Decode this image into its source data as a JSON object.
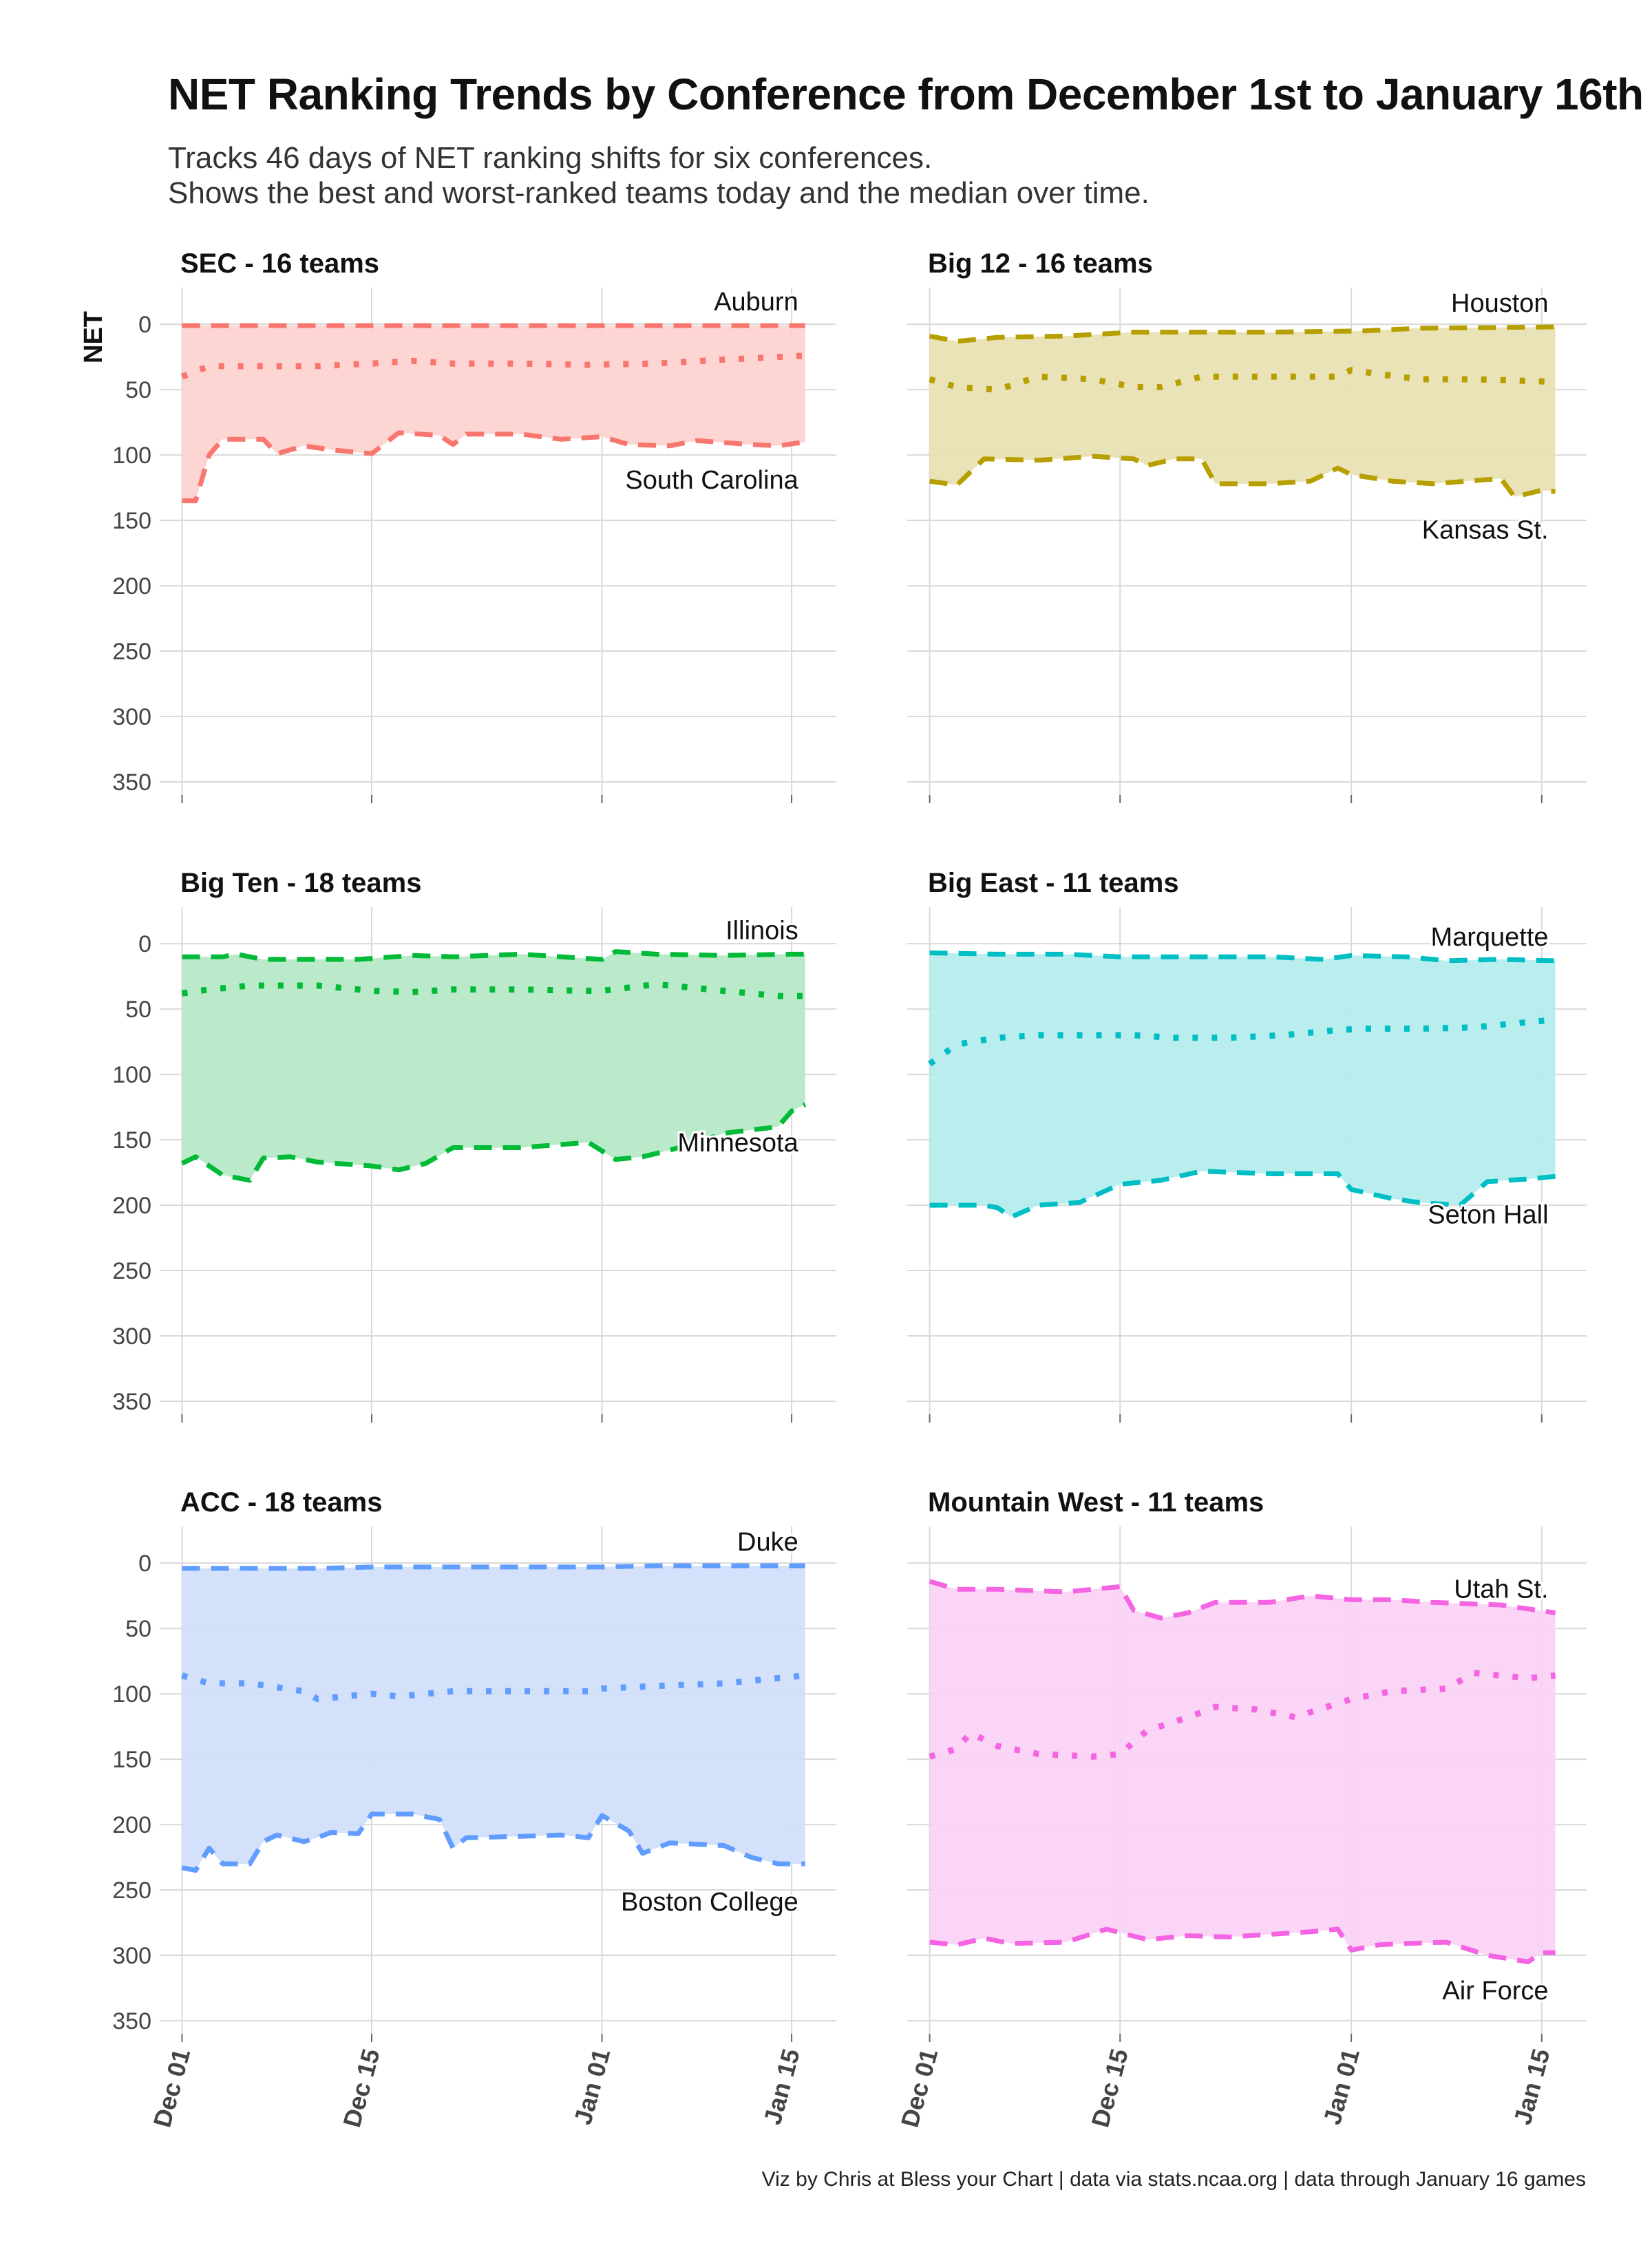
{
  "title": "NET Ranking Trends by Conference from December 1st to January 16th",
  "subtitle_lines": [
    "Tracks 46 days of NET ranking shifts for six conferences.",
    "Shows the best and worst-ranked teams today and the median over time."
  ],
  "caption": "Viz by Chris at Bless your Chart | data via stats.ncaa.org | data through January 16 games",
  "y_axis_label": "NET",
  "chart_data": {
    "type": "area",
    "x_tick_labels": [
      "Dec 01",
      "Dec 15",
      "Jan 01",
      "Jan 15"
    ],
    "x_tick_days": [
      0,
      14,
      31,
      45
    ],
    "y_ticks": [
      0,
      50,
      100,
      150,
      200,
      250,
      300,
      350
    ],
    "ylim": [
      360,
      -28
    ],
    "y_reversed": true,
    "grid": true,
    "panels": [
      {
        "title": "SEC - 16 teams",
        "color": "#F8766D",
        "fill": "#FDD2CE",
        "best_label": "Auburn",
        "worst_label": "South Carolina",
        "best": [
          [
            0,
            1
          ],
          [
            10,
            1
          ],
          [
            20,
            1
          ],
          [
            30,
            1
          ],
          [
            40,
            1
          ],
          [
            46,
            1
          ]
        ],
        "median": [
          [
            0,
            40
          ],
          [
            2,
            32
          ],
          [
            5,
            32
          ],
          [
            10,
            32
          ],
          [
            14,
            30
          ],
          [
            17,
            28
          ],
          [
            20,
            30
          ],
          [
            25,
            30
          ],
          [
            30,
            31
          ],
          [
            35,
            30
          ],
          [
            40,
            27
          ],
          [
            46,
            24
          ]
        ],
        "worst": [
          [
            0,
            135
          ],
          [
            1,
            135
          ],
          [
            2,
            100
          ],
          [
            3,
            88
          ],
          [
            6,
            88
          ],
          [
            7,
            99
          ],
          [
            9,
            93
          ],
          [
            11,
            96
          ],
          [
            14,
            99
          ],
          [
            16,
            83
          ],
          [
            19,
            85
          ],
          [
            20,
            92
          ],
          [
            21,
            84
          ],
          [
            25,
            84
          ],
          [
            28,
            88
          ],
          [
            31,
            86
          ],
          [
            33,
            92
          ],
          [
            36,
            93
          ],
          [
            38,
            89
          ],
          [
            42,
            92
          ],
          [
            44,
            93
          ],
          [
            46,
            90
          ]
        ]
      },
      {
        "title": "Big 12 - 16 teams",
        "color": "#B79F00",
        "fill": "#E8E0B0",
        "best_label": "Houston",
        "worst_label": "Kansas St.",
        "best": [
          [
            0,
            9
          ],
          [
            2,
            13
          ],
          [
            5,
            10
          ],
          [
            10,
            9
          ],
          [
            15,
            6
          ],
          [
            25,
            6
          ],
          [
            32,
            5
          ],
          [
            36,
            3
          ],
          [
            46,
            2
          ]
        ],
        "median": [
          [
            0,
            42
          ],
          [
            2,
            48
          ],
          [
            5,
            50
          ],
          [
            8,
            40
          ],
          [
            12,
            42
          ],
          [
            15,
            48
          ],
          [
            17,
            48
          ],
          [
            20,
            40
          ],
          [
            25,
            40
          ],
          [
            30,
            40
          ],
          [
            31,
            35
          ],
          [
            33,
            38
          ],
          [
            36,
            42
          ],
          [
            40,
            42
          ],
          [
            46,
            44
          ]
        ],
        "worst": [
          [
            0,
            120
          ],
          [
            2,
            123
          ],
          [
            4,
            103
          ],
          [
            8,
            104
          ],
          [
            12,
            101
          ],
          [
            15,
            103
          ],
          [
            16,
            108
          ],
          [
            18,
            103
          ],
          [
            20,
            103
          ],
          [
            21,
            122
          ],
          [
            25,
            122
          ],
          [
            28,
            120
          ],
          [
            30,
            110
          ],
          [
            31,
            115
          ],
          [
            34,
            120
          ],
          [
            37,
            122
          ],
          [
            42,
            118
          ],
          [
            43,
            132
          ],
          [
            45,
            127
          ],
          [
            46,
            128
          ]
        ]
      },
      {
        "title": "Big Ten - 18 teams",
        "color": "#00BA38",
        "fill": "#B3E8C3",
        "best_label": "Illinois",
        "worst_label": "Minnesota",
        "best": [
          [
            0,
            10
          ],
          [
            3,
            10
          ],
          [
            4,
            8
          ],
          [
            6,
            12
          ],
          [
            10,
            12
          ],
          [
            13,
            12
          ],
          [
            17,
            9
          ],
          [
            20,
            10
          ],
          [
            25,
            8
          ],
          [
            31,
            12
          ],
          [
            32,
            6
          ],
          [
            35,
            8
          ],
          [
            40,
            9
          ],
          [
            45,
            8
          ],
          [
            46,
            8
          ]
        ],
        "median": [
          [
            0,
            38
          ],
          [
            2,
            35
          ],
          [
            5,
            32
          ],
          [
            10,
            32
          ],
          [
            14,
            36
          ],
          [
            17,
            37
          ],
          [
            20,
            35
          ],
          [
            25,
            35
          ],
          [
            30,
            36
          ],
          [
            31,
            36
          ],
          [
            35,
            31
          ],
          [
            40,
            36
          ],
          [
            44,
            40
          ],
          [
            46,
            40
          ]
        ],
        "worst": [
          [
            0,
            168
          ],
          [
            1,
            163
          ],
          [
            3,
            177
          ],
          [
            5,
            181
          ],
          [
            6,
            164
          ],
          [
            8,
            163
          ],
          [
            10,
            167
          ],
          [
            14,
            170
          ],
          [
            16,
            173
          ],
          [
            18,
            168
          ],
          [
            20,
            156
          ],
          [
            25,
            156
          ],
          [
            30,
            152
          ],
          [
            32,
            165
          ],
          [
            34,
            163
          ],
          [
            36,
            158
          ],
          [
            38,
            152
          ],
          [
            40,
            145
          ],
          [
            44,
            140
          ],
          [
            45,
            128
          ],
          [
            46,
            123
          ]
        ]
      },
      {
        "title": "Big East - 11 teams",
        "color": "#00BFC4",
        "fill": "#B3ECEC",
        "best_label": "Marquette",
        "worst_label": "Seton Hall",
        "best": [
          [
            0,
            7
          ],
          [
            5,
            8
          ],
          [
            10,
            8
          ],
          [
            14,
            10
          ],
          [
            20,
            10
          ],
          [
            25,
            10
          ],
          [
            29,
            12
          ],
          [
            31,
            9
          ],
          [
            35,
            10
          ],
          [
            38,
            13
          ],
          [
            42,
            12
          ],
          [
            46,
            13
          ]
        ],
        "median": [
          [
            0,
            92
          ],
          [
            2,
            77
          ],
          [
            5,
            72
          ],
          [
            8,
            70
          ],
          [
            12,
            70
          ],
          [
            15,
            70
          ],
          [
            18,
            72
          ],
          [
            22,
            72
          ],
          [
            26,
            70
          ],
          [
            30,
            66
          ],
          [
            32,
            65
          ],
          [
            36,
            65
          ],
          [
            40,
            64
          ],
          [
            44,
            60
          ],
          [
            46,
            58
          ]
        ],
        "worst": [
          [
            0,
            200
          ],
          [
            4,
            200
          ],
          [
            5,
            202
          ],
          [
            6,
            209
          ],
          [
            8,
            200
          ],
          [
            11,
            198
          ],
          [
            14,
            184
          ],
          [
            17,
            181
          ],
          [
            20,
            174
          ],
          [
            25,
            176
          ],
          [
            30,
            176
          ],
          [
            31,
            188
          ],
          [
            34,
            195
          ],
          [
            36,
            198
          ],
          [
            39,
            200
          ],
          [
            41,
            182
          ],
          [
            44,
            180
          ],
          [
            46,
            178
          ]
        ]
      },
      {
        "title": "ACC - 18 teams",
        "color": "#619CFF",
        "fill": "#CFDEFA",
        "best_label": "Duke",
        "worst_label": "Boston College",
        "best": [
          [
            0,
            4
          ],
          [
            10,
            4
          ],
          [
            14,
            3
          ],
          [
            25,
            3
          ],
          [
            31,
            3
          ],
          [
            35,
            2
          ],
          [
            46,
            2
          ]
        ],
        "median": [
          [
            0,
            86
          ],
          [
            2,
            92
          ],
          [
            5,
            92
          ],
          [
            9,
            98
          ],
          [
            10,
            104
          ],
          [
            14,
            100
          ],
          [
            16,
            102
          ],
          [
            20,
            98
          ],
          [
            25,
            98
          ],
          [
            30,
            98
          ],
          [
            31,
            96
          ],
          [
            35,
            94
          ],
          [
            40,
            92
          ],
          [
            44,
            88
          ],
          [
            46,
            86
          ]
        ],
        "worst": [
          [
            0,
            233
          ],
          [
            1,
            235
          ],
          [
            2,
            218
          ],
          [
            3,
            230
          ],
          [
            5,
            230
          ],
          [
            6,
            213
          ],
          [
            7,
            208
          ],
          [
            9,
            213
          ],
          [
            10,
            210
          ],
          [
            11,
            206
          ],
          [
            13,
            207
          ],
          [
            14,
            192
          ],
          [
            17,
            192
          ],
          [
            19,
            196
          ],
          [
            20,
            218
          ],
          [
            21,
            210
          ],
          [
            25,
            209
          ],
          [
            28,
            208
          ],
          [
            30,
            210
          ],
          [
            31,
            193
          ],
          [
            33,
            205
          ],
          [
            34,
            222
          ],
          [
            36,
            214
          ],
          [
            38,
            215
          ],
          [
            40,
            216
          ],
          [
            42,
            225
          ],
          [
            44,
            230
          ],
          [
            46,
            230
          ]
        ]
      },
      {
        "title": "Mountain West - 11 teams",
        "color": "#F564E3",
        "fill": "#FAD0F4",
        "best_label": "Utah St.",
        "worst_label": "Air Force",
        "best": [
          [
            0,
            14
          ],
          [
            2,
            20
          ],
          [
            5,
            20
          ],
          [
            10,
            22
          ],
          [
            14,
            18
          ],
          [
            15,
            36
          ],
          [
            17,
            42
          ],
          [
            19,
            38
          ],
          [
            21,
            30
          ],
          [
            25,
            30
          ],
          [
            28,
            25
          ],
          [
            31,
            28
          ],
          [
            34,
            28
          ],
          [
            37,
            30
          ],
          [
            42,
            32
          ],
          [
            46,
            38
          ]
        ],
        "median": [
          [
            0,
            148
          ],
          [
            2,
            142
          ],
          [
            3,
            130
          ],
          [
            5,
            140
          ],
          [
            8,
            146
          ],
          [
            12,
            148
          ],
          [
            14,
            146
          ],
          [
            16,
            128
          ],
          [
            19,
            118
          ],
          [
            21,
            110
          ],
          [
            24,
            112
          ],
          [
            27,
            118
          ],
          [
            28,
            114
          ],
          [
            31,
            104
          ],
          [
            34,
            98
          ],
          [
            38,
            96
          ],
          [
            40,
            84
          ],
          [
            44,
            88
          ],
          [
            46,
            86
          ]
        ],
        "worst": [
          [
            0,
            290
          ],
          [
            2,
            292
          ],
          [
            4,
            287
          ],
          [
            6,
            291
          ],
          [
            10,
            290
          ],
          [
            13,
            280
          ],
          [
            16,
            288
          ],
          [
            19,
            285
          ],
          [
            22,
            286
          ],
          [
            25,
            284
          ],
          [
            28,
            282
          ],
          [
            30,
            280
          ],
          [
            31,
            296
          ],
          [
            33,
            292
          ],
          [
            35,
            291
          ],
          [
            38,
            290
          ],
          [
            41,
            300
          ],
          [
            44,
            305
          ],
          [
            45,
            298
          ],
          [
            46,
            298
          ]
        ]
      }
    ]
  }
}
